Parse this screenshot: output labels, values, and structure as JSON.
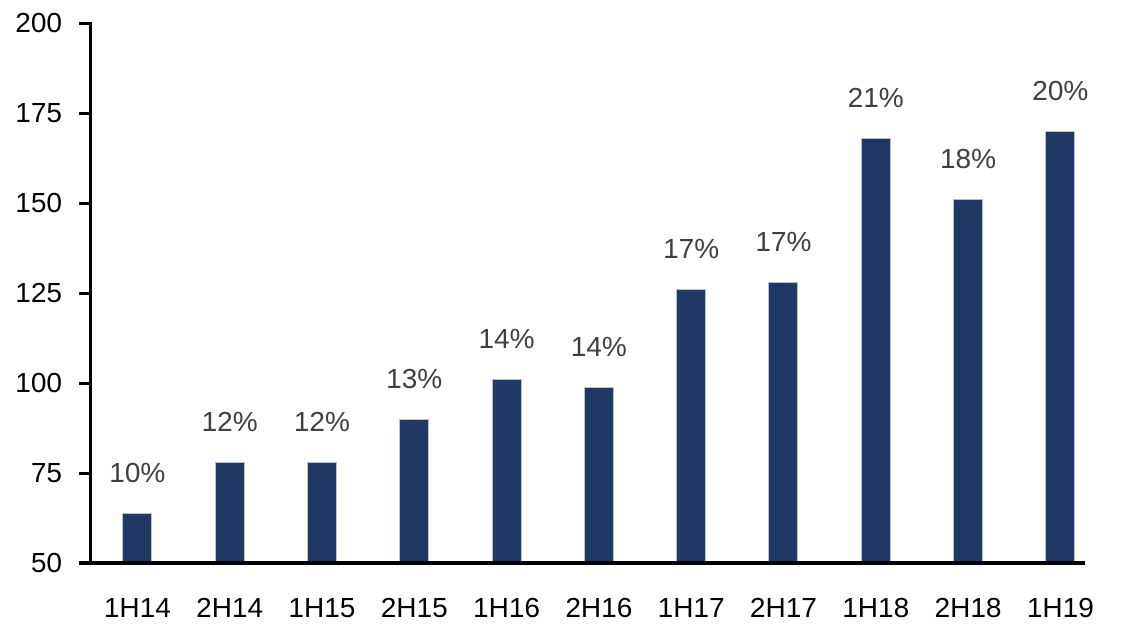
{
  "chart_data": {
    "type": "bar",
    "title": "",
    "xlabel": "",
    "ylabel": "",
    "categories": [
      "1H14",
      "2H14",
      "1H15",
      "2H15",
      "1H16",
      "2H16",
      "1H17",
      "2H17",
      "1H18",
      "2H18",
      "1H19"
    ],
    "values": [
      64,
      78,
      78,
      90,
      101,
      99,
      126,
      128,
      168,
      151,
      170
    ],
    "data_labels": [
      "10%",
      "12%",
      "12%",
      "13%",
      "14%",
      "14%",
      "17%",
      "17%",
      "21%",
      "18%",
      "20%"
    ],
    "ylim": [
      50,
      200
    ],
    "y_ticks": [
      50,
      75,
      100,
      125,
      150,
      175,
      200
    ],
    "grid": false,
    "legend": "none",
    "colors": {
      "bar_fill": "#1f3864",
      "bar_border": "#b6c0d2",
      "data_label": "#404040",
      "axis": "#000000",
      "tick_label": "#000000",
      "background": "#ffffff"
    }
  }
}
